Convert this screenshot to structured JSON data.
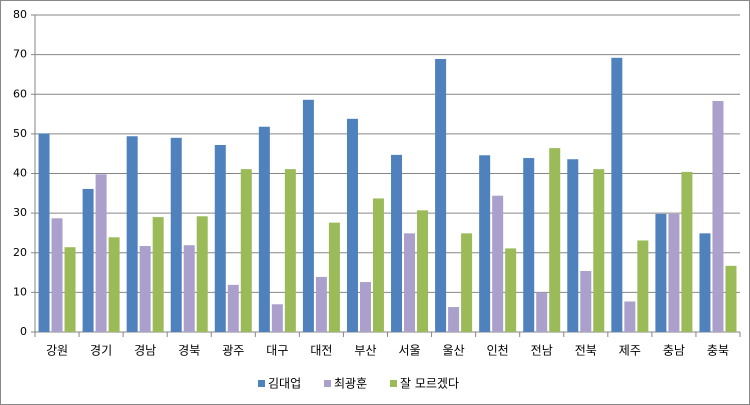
{
  "chart_data": {
    "type": "bar",
    "categories": [
      "강원",
      "경기",
      "경남",
      "경북",
      "광주",
      "대구",
      "대전",
      "부산",
      "서울",
      "울산",
      "인천",
      "전남",
      "전북",
      "제주",
      "충남",
      "충북"
    ],
    "series": [
      {
        "name": "김대업",
        "color": "#4f81bd",
        "values": [
          50.1,
          36.1,
          49.4,
          49.0,
          47.2,
          51.8,
          58.6,
          53.8,
          44.7,
          68.9,
          44.6,
          43.9,
          43.6,
          69.2,
          29.8,
          24.9
        ]
      },
      {
        "name": "최광훈",
        "color": "#ab9fcb",
        "values": [
          28.7,
          39.8,
          21.7,
          21.9,
          11.9,
          7.0,
          13.9,
          12.6,
          24.9,
          6.3,
          34.4,
          10.0,
          15.4,
          7.7,
          29.8,
          58.3
        ]
      },
      {
        "name": "잘 모르겠다",
        "color": "#9bbb59",
        "values": [
          21.4,
          23.9,
          29.0,
          29.2,
          41.1,
          41.1,
          27.6,
          33.7,
          30.7,
          24.9,
          21.1,
          46.4,
          41.1,
          23.1,
          40.4,
          16.7
        ]
      }
    ],
    "ylim": [
      0,
      80
    ],
    "yticks": [
      0,
      10,
      20,
      30,
      40,
      50,
      60,
      70,
      80
    ],
    "grid": true,
    "legend": "bottom"
  }
}
